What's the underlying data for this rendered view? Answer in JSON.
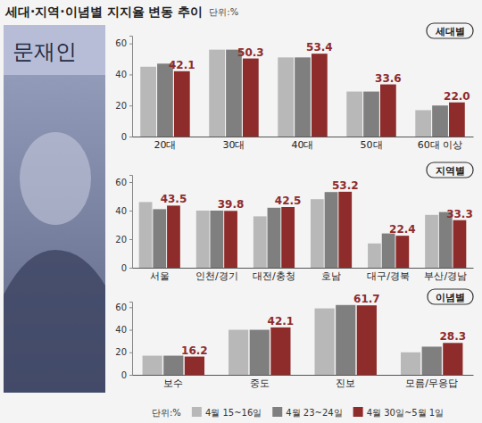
{
  "header": {
    "title": "세대·지역·이념별 지지율 변동 추이",
    "unit": "단위:%"
  },
  "portrait_name": "문재인",
  "legend_unit": "단위:%",
  "chart_data": [
    {
      "type": "bar",
      "title": "세대별",
      "legend": "bottom",
      "categories": [
        "20대",
        "30대",
        "40대",
        "50대",
        "60대 이상"
      ],
      "series": [
        {
          "name": "4월 15~16일",
          "color": "#b8b8b8",
          "values": [
            45,
            56,
            51,
            29,
            17
          ]
        },
        {
          "name": "4월 23~24일",
          "color": "#7f7f7f",
          "values": [
            47,
            56,
            51,
            29,
            20
          ]
        },
        {
          "name": "4월 30일~5월 1일",
          "color": "#8e2b2b",
          "values": [
            42.1,
            50.3,
            53.4,
            33.6,
            22.0
          ],
          "data_labels": true,
          "value_labels": [
            "42.1",
            "50.3",
            "53.4",
            "33.6",
            "22.0"
          ]
        }
      ],
      "ylim": [
        0,
        65
      ],
      "yticks": [
        0,
        20,
        40,
        60
      ],
      "grid": false
    },
    {
      "type": "bar",
      "title": "지역별",
      "categories": [
        "서울",
        "인천/경기",
        "대전/충청",
        "호남",
        "대구/경북",
        "부산/경남"
      ],
      "series": [
        {
          "name": "4월 15~16일",
          "color": "#b8b8b8",
          "values": [
            46,
            40,
            36,
            48,
            17,
            37
          ]
        },
        {
          "name": "4월 23~24일",
          "color": "#7f7f7f",
          "values": [
            41,
            40,
            42,
            53,
            24,
            39
          ]
        },
        {
          "name": "4월 30일~5월 1일",
          "color": "#8e2b2b",
          "values": [
            43.5,
            39.8,
            42.5,
            53.2,
            22.4,
            33.3
          ],
          "data_labels": true,
          "value_labels": [
            "43.5",
            "39.8",
            "42.5",
            "53.2",
            "22.4",
            "33.3"
          ]
        }
      ],
      "ylim": [
        0,
        65
      ],
      "yticks": [
        0,
        20,
        40,
        60
      ],
      "grid": false
    },
    {
      "type": "bar",
      "title": "이념별",
      "categories": [
        "보수",
        "중도",
        "진보",
        "모름/무응답"
      ],
      "series": [
        {
          "name": "4월 15~16일",
          "color": "#b8b8b8",
          "values": [
            17,
            40,
            59,
            20
          ]
        },
        {
          "name": "4월 23~24일",
          "color": "#7f7f7f",
          "values": [
            17,
            40,
            62,
            25
          ]
        },
        {
          "name": "4월 30일~5월 1일",
          "color": "#8e2b2b",
          "values": [
            16.2,
            42.1,
            61.7,
            28.3
          ],
          "data_labels": true,
          "value_labels": [
            "16.2",
            "42.1",
            "61.7",
            "28.3"
          ]
        }
      ],
      "ylim": [
        0,
        65
      ],
      "yticks": [
        0,
        20,
        40,
        60
      ],
      "grid": false
    }
  ]
}
